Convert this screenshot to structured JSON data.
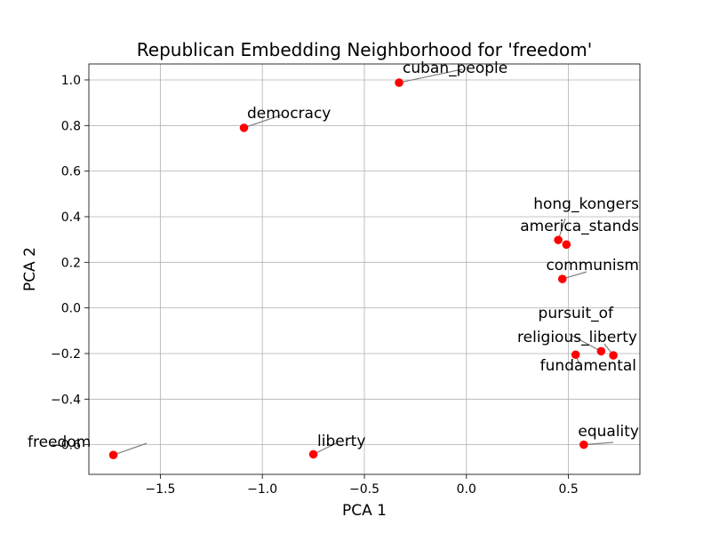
{
  "chart_data": {
    "type": "scatter",
    "title": "Republican Embedding Neighborhood for 'freedom'",
    "xlabel": "PCA 1",
    "ylabel": "PCA 2",
    "xlim": [
      -1.85,
      0.85
    ],
    "ylim": [
      -0.73,
      1.07
    ],
    "grid": true,
    "point_color": "#ff0000",
    "leader_color": "#808080",
    "xticks": [
      -1.5,
      -1.0,
      -0.5,
      0.0,
      0.5
    ],
    "xtick_labels": [
      "−1.5",
      "−1.0",
      "−0.5",
      "0.0",
      "0.5"
    ],
    "yticks": [
      -0.6,
      -0.4,
      -0.2,
      0.0,
      0.2,
      0.4,
      0.6,
      0.8,
      1.0
    ],
    "ytick_labels": [
      "−0.6",
      "−0.4",
      "−0.2",
      "0.0",
      "0.2",
      "0.4",
      "0.6",
      "0.8",
      "1.0"
    ],
    "points": [
      {
        "label": "freedom",
        "x": -1.73,
        "y": -0.645,
        "label_anchor": "start"
      },
      {
        "label": "liberty",
        "x": -0.75,
        "y": -0.642,
        "label_anchor": "start"
      },
      {
        "label": "democracy",
        "x": -1.09,
        "y": 0.79,
        "label_anchor": "start"
      },
      {
        "label": "cuban_people",
        "x": -0.33,
        "y": 0.988,
        "label_anchor": "start"
      },
      {
        "label": "hong_kongers",
        "x": 0.45,
        "y": 0.298,
        "label_anchor": "end"
      },
      {
        "label": "america_stands",
        "x": 0.49,
        "y": 0.278,
        "label_anchor": "end"
      },
      {
        "label": "communism",
        "x": 0.47,
        "y": 0.127,
        "label_anchor": "end"
      },
      {
        "label": "pursuit_of",
        "x": 0.66,
        "y": -0.19,
        "label_anchor": "end"
      },
      {
        "label": "religious_liberty",
        "x": 0.72,
        "y": -0.208,
        "label_anchor": "end"
      },
      {
        "label": "fundamental",
        "x": 0.535,
        "y": -0.205,
        "label_anchor": "end"
      },
      {
        "label": "equality",
        "x": 0.575,
        "y": -0.6,
        "label_anchor": "end"
      }
    ]
  }
}
